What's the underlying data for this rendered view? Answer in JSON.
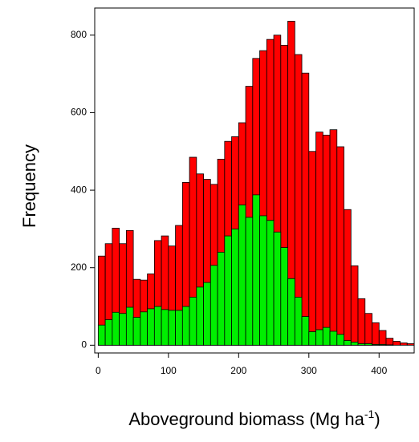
{
  "chart_data": {
    "type": "bar",
    "xlabel_main": "Aboveground biomass (Mg ha",
    "xlabel_sup": "-1",
    "xlabel_end": ")",
    "ylabel": "Frequency",
    "xlim": [
      -5,
      450
    ],
    "ylim": [
      -20,
      870
    ],
    "bin_width": 10,
    "x_ticks": [
      0,
      100,
      200,
      300,
      400
    ],
    "y_ticks": [
      0,
      200,
      400,
      600,
      800
    ],
    "bin_starts": [
      0,
      10,
      20,
      30,
      40,
      50,
      60,
      70,
      80,
      90,
      100,
      110,
      120,
      130,
      140,
      150,
      160,
      170,
      180,
      190,
      200,
      210,
      220,
      230,
      240,
      250,
      260,
      270,
      280,
      290,
      300,
      310,
      320,
      330,
      340,
      350,
      360,
      370,
      380,
      390,
      400,
      410,
      420,
      430,
      440
    ],
    "series": [
      {
        "color": "#ff0000",
        "values": [
          230,
          262,
          302,
          262,
          296,
          170,
          168,
          184,
          270,
          282,
          256,
          309,
          420,
          485,
          442,
          428,
          415,
          480,
          526,
          538,
          574,
          668,
          740,
          760,
          789,
          800,
          774,
          836,
          750,
          702,
          500,
          550,
          542,
          556,
          512,
          350,
          205,
          120,
          82,
          58,
          38,
          18,
          10,
          6,
          4
        ]
      },
      {
        "color": "#00ee00",
        "values": [
          52,
          66,
          85,
          82,
          98,
          72,
          86,
          94,
          100,
          92,
          90,
          90,
          100,
          124,
          150,
          162,
          206,
          240,
          282,
          300,
          362,
          330,
          388,
          334,
          322,
          292,
          252,
          172,
          124,
          74,
          35,
          40,
          46,
          36,
          28,
          12,
          8,
          4,
          4,
          2,
          2,
          1,
          0,
          0,
          0
        ]
      }
    ]
  }
}
